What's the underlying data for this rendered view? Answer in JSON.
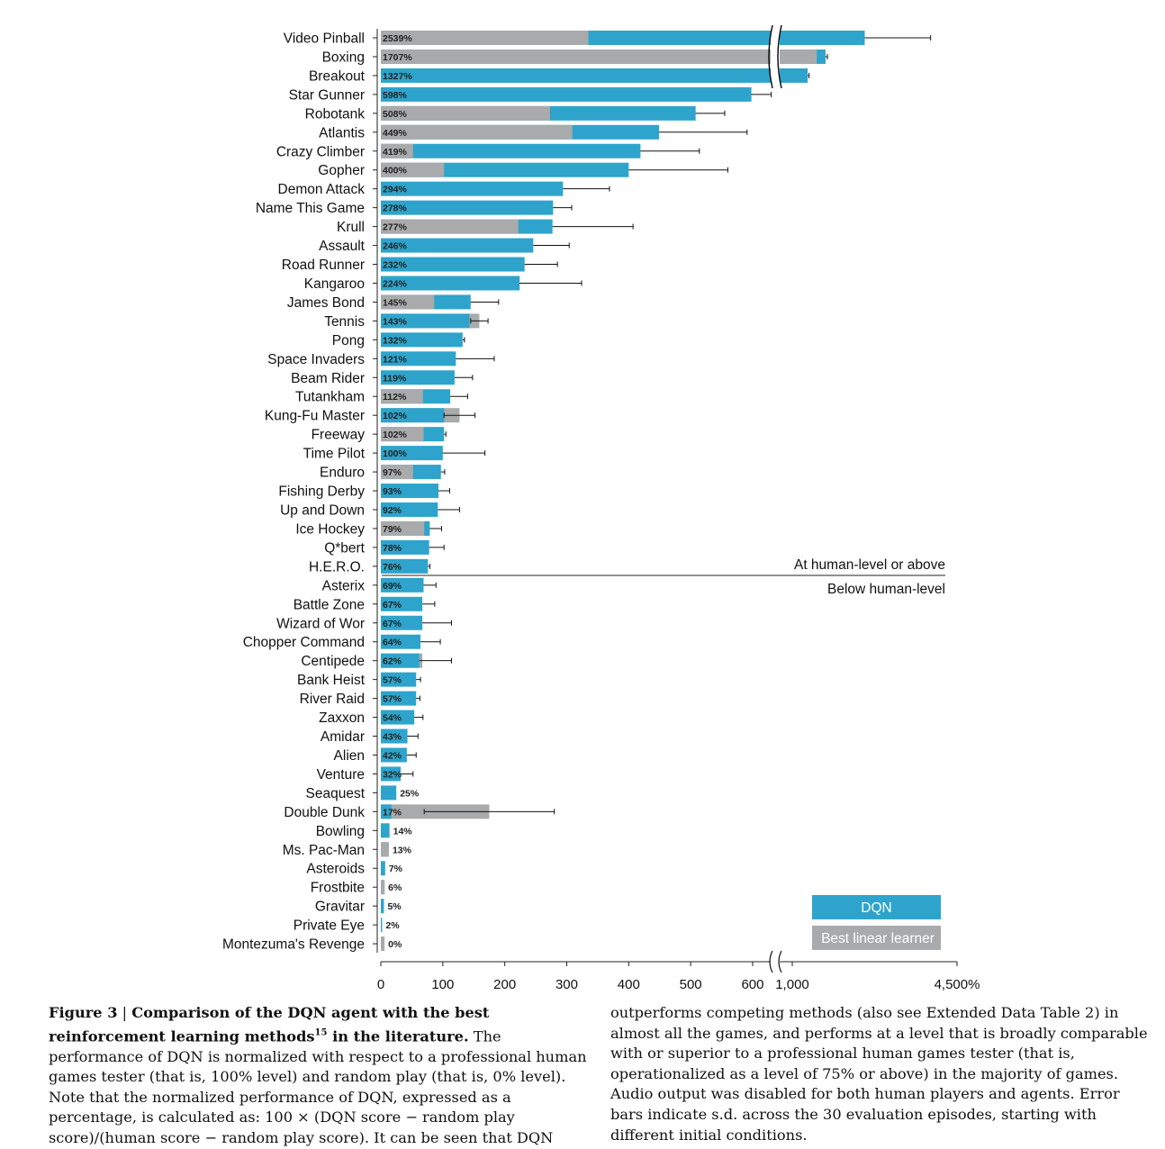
{
  "chart_data": {
    "type": "bar",
    "orientation": "horizontal",
    "categories": [
      "Video Pinball",
      "Boxing",
      "Breakout",
      "Star Gunner",
      "Robotank",
      "Atlantis",
      "Crazy Climber",
      "Gopher",
      "Demon Attack",
      "Name This Game",
      "Krull",
      "Assault",
      "Road Runner",
      "Kangaroo",
      "James Bond",
      "Tennis",
      "Pong",
      "Space Invaders",
      "Beam Rider",
      "Tutankham",
      "Kung-Fu Master",
      "Freeway",
      "Time Pilot",
      "Enduro",
      "Fishing Derby",
      "Up and Down",
      "Ice Hockey",
      "Q*bert",
      "H.E.R.O.",
      "Asterix",
      "Battle Zone",
      "Wizard of Wor",
      "Chopper Command",
      "Centipede",
      "Bank Heist",
      "River Raid",
      "Zaxxon",
      "Amidar",
      "Alien",
      "Venture",
      "Seaquest",
      "Double Dunk",
      "Bowling",
      "Ms. Pac-Man",
      "Asteroids",
      "Frostbite",
      "Gravitar",
      "Private Eye",
      "Montezuma's Revenge"
    ],
    "value_labels": [
      "2539%",
      "1707%",
      "1327%",
      "598%",
      "508%",
      "449%",
      "419%",
      "400%",
      "294%",
      "278%",
      "277%",
      "246%",
      "232%",
      "224%",
      "145%",
      "143%",
      "132%",
      "121%",
      "119%",
      "112%",
      "102%",
      "102%",
      "100%",
      "97%",
      "93%",
      "92%",
      "79%",
      "78%",
      "76%",
      "69%",
      "67%",
      "67%",
      "64%",
      "62%",
      "57%",
      "57%",
      "54%",
      "43%",
      "42%",
      "32%",
      "25%",
      "17%",
      "14%",
      "13%",
      "7%",
      "6%",
      "5%",
      "2%",
      "0%"
    ],
    "series": [
      {
        "name": "DQN",
        "color": "#2ea4cc",
        "values": [
          2539,
          1707,
          1327,
          598,
          508,
          449,
          419,
          400,
          294,
          278,
          277,
          246,
          232,
          224,
          145,
          143,
          132,
          121,
          119,
          112,
          102,
          102,
          100,
          97,
          93,
          92,
          79,
          78,
          76,
          69,
          67,
          67,
          64,
          62,
          57,
          57,
          54,
          43,
          42,
          32,
          25,
          17,
          14,
          13,
          7,
          6,
          5,
          2,
          0
        ],
        "error": [
          1400,
          40,
          30,
          32,
          47,
          142,
          95,
          160,
          75,
          30,
          130,
          58,
          53,
          100,
          45,
          null,
          3,
          62,
          29,
          28,
          null,
          3,
          68,
          6,
          18,
          35,
          19,
          24,
          3,
          20,
          20,
          47,
          32,
          52,
          7,
          6,
          14,
          17,
          15,
          20,
          null,
          null,
          null,
          null,
          null,
          null,
          null,
          null,
          null
        ]
      },
      {
        "name": "Best linear learner",
        "color": "#a9aaac",
        "values": [
          335,
          1520,
          null,
          null,
          273,
          309,
          52,
          102,
          null,
          null,
          222,
          null,
          null,
          null,
          86,
          159,
          null,
          null,
          null,
          68,
          127,
          69,
          null,
          52,
          null,
          null,
          70,
          null,
          null,
          null,
          null,
          null,
          null,
          67,
          null,
          null,
          null,
          null,
          null,
          null,
          null,
          175,
          null,
          13,
          null,
          6,
          null,
          null,
          6
        ],
        "error": [
          null,
          null,
          null,
          null,
          null,
          null,
          null,
          null,
          null,
          null,
          null,
          null,
          null,
          null,
          null,
          14,
          null,
          null,
          null,
          null,
          25,
          null,
          null,
          null,
          null,
          null,
          null,
          null,
          null,
          null,
          null,
          null,
          null,
          null,
          null,
          null,
          null,
          null,
          null,
          null,
          null,
          105,
          null,
          null,
          null,
          null,
          null,
          null,
          null
        ]
      }
    ],
    "x_ticks": [
      "0",
      "100",
      "200",
      "300",
      "400",
      "500",
      "600",
      "1,000",
      "4,500%"
    ],
    "x_axis_break": "between 600 and 1,000",
    "human_level_divider": {
      "after": "H.E.R.O.",
      "above_label": "At human-level or above",
      "below_label": "Below human-level"
    },
    "legend": {
      "placement": "bottom-right",
      "items": [
        "DQN",
        "Best linear learner"
      ]
    }
  },
  "caption": {
    "figure_label": "Figure 3",
    "separator": "|",
    "title_part1": "Comparison of the DQN agent with the best reinforcement learning methods",
    "title_ref": "15",
    "title_part2": " in the literature.",
    "body_left": " The performance of DQN is normalized with respect to a professional human games tester (that is, 100% level) and random play (that is, 0% level). Note that the normalized performance of DQN, expressed as a percentage, is calculated as: 100 × (DQN score − random play score)/(human score − random play score). It can be seen that DQN",
    "body_right": "outperforms competing methods (also see Extended Data Table 2) in almost all the games, and performs at a level that is broadly comparable with or superior to a professional human games tester (that is, operationalized as a level of 75% or above) in the majority of games. Audio output was disabled for both human players and agents. Error bars indicate s.d. across the 30 evaluation episodes, starting with different initial conditions."
  }
}
